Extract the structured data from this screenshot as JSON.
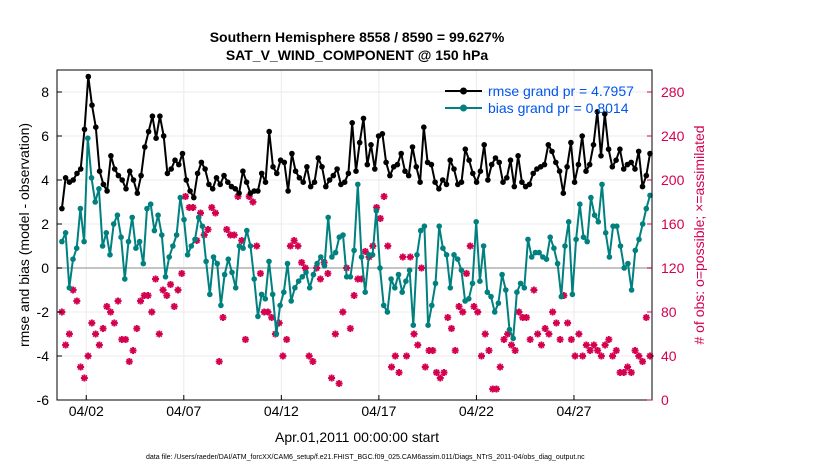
{
  "chart_data": {
    "type": "line",
    "title": "Southern Hemisphere 8558 / 8590 = 99.627%",
    "subtitle": "SAT_V_WIND_COMPONENT @ 150 hPa",
    "xlabel": "Apr.01,2011 00:00:00 start",
    "ylabel_left": "rmse and bias (model - observation)",
    "ylabel_right": "# of obs: o=possible; ×=assimilated",
    "footnote": "data file: /Users/raeder/DAI/ATM_forcXX/CAM6_setup/f.e21.FHIST_BGC.f09_025.CAM6assim.011/Diags_NTrS_2011-04/obs_diag_output.nc",
    "xlim": [
      0.5,
      31.0
    ],
    "ylim_left": [
      -6,
      9
    ],
    "ylim_right": [
      0,
      300
    ],
    "x_tick_values": [
      2,
      7,
      12,
      17,
      22,
      27
    ],
    "x_tick_labels": [
      "04/02",
      "04/07",
      "04/12",
      "04/17",
      "04/22",
      "04/27"
    ],
    "y_left_ticks": [
      -6,
      -4,
      -2,
      0,
      2,
      4,
      6,
      8
    ],
    "y_right_ticks": [
      0,
      40,
      80,
      120,
      160,
      200,
      240,
      280
    ],
    "grid": true,
    "zero_line": true,
    "legend_position": "top-right",
    "colors": {
      "rmse": "#000000",
      "bias": "#00807f",
      "obs": "#d4004f",
      "legend_text": "#0055ee",
      "zero_line": "#b0b0b0"
    },
    "series": [
      {
        "name": "rmse",
        "legend": "rmse grand pr = 4.7957",
        "axis": "left",
        "values": [
          2.7,
          4.1,
          3.9,
          4.0,
          4.3,
          4.5,
          6.3,
          8.7,
          7.4,
          6.4,
          4.4,
          3.8,
          3.5,
          5.1,
          4.5,
          4.2,
          4.0,
          3.6,
          4.4,
          4.0,
          3.4,
          4.2,
          5.5,
          6.2,
          6.9,
          5.9,
          6.9,
          6.0,
          4.3,
          4.5,
          4.9,
          4.7,
          5.2,
          4.0,
          3.5,
          3.2,
          4.3,
          4.8,
          4.5,
          3.8,
          3.6,
          4.1,
          3.8,
          4.2,
          3.9,
          3.7,
          3.6,
          3.4,
          4.4,
          3.9,
          3.4,
          3.5,
          3.5,
          4.3,
          3.9,
          6.2,
          4.6,
          4.3,
          4.9,
          4.8,
          3.5,
          5.2,
          4.4,
          4.1,
          3.9,
          4.6,
          3.7,
          3.9,
          5.0,
          4.6,
          3.7,
          4.0,
          4.2,
          4.5,
          3.8,
          3.9,
          4.3,
          6.6,
          4.4,
          5.7,
          6.8,
          4.7,
          5.6,
          4.5,
          6.0,
          6.1,
          4.8,
          4.2,
          4.6,
          4.7,
          5.2,
          4.4,
          4.2,
          5.5,
          4.6,
          3.9,
          6.4,
          4.8,
          4.7,
          3.9,
          3.6,
          4.0,
          3.8,
          4.9,
          4.5,
          3.8,
          3.9,
          5.4,
          4.9,
          4.3,
          3.9,
          4.4,
          5.6,
          4.0,
          4.7,
          5.0,
          4.8,
          3.9,
          4.1,
          4.9,
          3.7,
          5.1,
          3.9,
          3.7,
          3.8,
          4.3,
          4.5,
          4.6,
          4.7,
          5.6,
          5.3,
          4.8,
          4.4,
          3.4,
          4.6,
          5.7,
          3.9,
          4.7,
          6.0,
          4.4,
          4.7,
          5.6,
          7.1,
          5.1,
          7.0,
          5.4,
          4.6,
          4.9,
          5.4,
          4.5,
          4.7,
          4.8,
          4.5,
          5.3,
          3.7,
          4.2,
          5.2
        ]
      },
      {
        "name": "bias",
        "legend": "bias grand pr = 0.8014",
        "axis": "left",
        "values": [
          1.2,
          1.6,
          -0.9,
          0.4,
          0.9,
          2.7,
          1.2,
          5.9,
          4.1,
          3.0,
          3.6,
          1.0,
          1.6,
          0.6,
          2.0,
          2.4,
          1.4,
          -0.5,
          1.2,
          2.3,
          0.9,
          1.2,
          0.2,
          2.7,
          2.9,
          1.7,
          2.4,
          1.5,
          -0.4,
          0.5,
          1.0,
          1.5,
          3.2,
          2.2,
          0.6,
          1.0,
          1.3,
          2.3,
          1.9,
          0.3,
          -1.2,
          0.5,
          0.2,
          -1.7,
          -0.3,
          0.4,
          -0.2,
          -0.9,
          1.0,
          0.9,
          1.7,
          1.0,
          -0.5,
          -2.2,
          -1.2,
          -1.4,
          0.3,
          -1.2,
          -3.0,
          -1.7,
          -1.1,
          0.2,
          -1.5,
          -0.9,
          -0.6,
          -0.4,
          -0.2,
          -0.9,
          -0.3,
          0.2,
          0.5,
          0.1,
          2.3,
          0.5,
          0.7,
          1.4,
          1.5,
          -0.4,
          -0.4,
          0.8,
          3.8,
          0.5,
          -1.1,
          0.6,
          0.6,
          2.6,
          0.0,
          -1.7,
          -2.0,
          -0.5,
          -0.9,
          -0.3,
          -1.1,
          -0.6,
          -0.1,
          -2.6,
          0.6,
          1.7,
          1.9,
          -2.6,
          -1.7,
          -0.7,
          1.9,
          0.9,
          0.6,
          -0.9,
          0.6,
          0.4,
          -0.1,
          -1.5,
          -1.4,
          -0.7,
          2.1,
          -0.6,
          1.0,
          -1.1,
          -1.3,
          -2.0,
          -1.6,
          -0.3,
          -1.0,
          -2.8,
          -3.2,
          -1.1,
          -0.7,
          -0.9,
          1.3,
          0.5,
          0.7,
          0.7,
          0.5,
          0.4,
          1.4,
          0.9,
          0.2,
          -1.3,
          1.0,
          2.1,
          -1.2,
          1.3,
          2.9,
          1.4,
          1.2,
          3.2,
          2.4,
          2.1,
          3.8,
          1.6,
          0.5,
          1.9,
          1.9,
          1.0,
          0.0,
          0.2,
          -1.0,
          0.8,
          1.3,
          2.0,
          2.7,
          3.3
        ]
      },
      {
        "name": "obs_assimilated",
        "axis": "right",
        "values": [
          80,
          50,
          60,
          100,
          90,
          30,
          20,
          40,
          70,
          60,
          50,
          65,
          85,
          80,
          70,
          90,
          55,
          55,
          35,
          45,
          65,
          90,
          95,
          95,
          80,
          110,
          60,
          100,
          95,
          105,
          85,
          100,
          115,
          185,
          175,
          175,
          145,
          170,
          150,
          155,
          175,
          170,
          35,
          75,
          155,
          150,
          150,
          185,
          145,
          55,
          185,
          180,
          140,
          115,
          80,
          80,
          75,
          60,
          70,
          40,
          55,
          140,
          145,
          140,
          125,
          120,
          40,
          35,
          120,
          110,
          125,
          115,
          20,
          60,
          15,
          80,
          120,
          65,
          95,
          110,
          110,
          135,
          130,
          140,
          175,
          165,
          185,
          140,
          30,
          40,
          25,
          130,
          40,
          130,
          60,
          50,
          120,
          30,
          45,
          45,
          25,
          20,
          25,
          75,
          65,
          45,
          85,
          80,
          115,
          140,
          85,
          80,
          40,
          60,
          45,
          10,
          10,
          30,
          55,
          60,
          50,
          45,
          80,
          75,
          75,
          55,
          100,
          60,
          50,
          65,
          60,
          80,
          70,
          55,
          95,
          70,
          55,
          40,
          60,
          40,
          50,
          45,
          50,
          45,
          40,
          50,
          55,
          40,
          45,
          25,
          25,
          30,
          25,
          45,
          40,
          35,
          75,
          40
        ]
      }
    ]
  }
}
